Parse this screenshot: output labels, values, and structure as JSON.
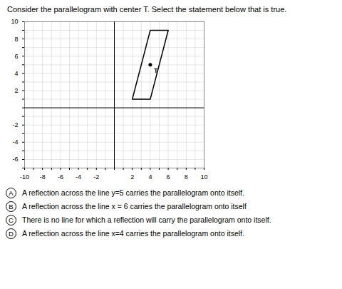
{
  "chart_data": {
    "type": "polygon",
    "title": "Consider the parallelogram with center T.  Select the statement below that is true.",
    "x": [
      2,
      4,
      6,
      4
    ],
    "y": [
      1,
      1,
      9,
      9
    ],
    "color": "#000000",
    "points": [
      {
        "x": 4.0,
        "y": 5.0,
        "label": "T"
      }
    ],
    "xlim": [
      -10,
      10
    ],
    "ylim": [
      -7,
      10
    ],
    "xticks": [
      -10,
      {
        "value": -9,
        "label": null
      },
      -8,
      {
        "value": -7,
        "label": null
      },
      -6,
      {
        "value": -5,
        "label": null
      },
      -4,
      {
        "value": -3,
        "label": null
      },
      -2,
      {
        "value": -1,
        "label": null
      },
      {
        "value": 0,
        "label": null
      },
      {
        "value": 1,
        "label": null
      },
      2,
      {
        "value": 3,
        "label": null
      },
      4,
      {
        "value": 5,
        "label": null
      },
      6,
      {
        "value": 7,
        "label": null
      },
      8,
      {
        "value": 9,
        "label": null
      },
      10
    ],
    "yticks": [
      {
        "value": -7,
        "label": null
      },
      -6,
      {
        "value": -5,
        "label": null
      },
      -4,
      {
        "value": -3,
        "label": null
      },
      -2,
      {
        "value": -1,
        "label": null
      },
      {
        "value": 0,
        "label": null
      },
      {
        "value": 1,
        "label": null
      },
      2,
      {
        "value": 3,
        "label": null
      },
      4,
      {
        "value": 5,
        "label": null
      },
      6,
      {
        "value": 7,
        "label": null
      },
      8,
      {
        "value": 9,
        "label": null
      },
      10
    ],
    "grid": true,
    "annotations": [
      {
        "label": "A",
        "text": "A reflection across the line y=5 carries the parallelogram onto itself."
      },
      {
        "label": "B",
        "text": "A reflection across the line x = 6 carries the parallelogram onto itself"
      },
      {
        "label": "C",
        "text": "There is no line for which a reflection will carry the parallelogram onto itself."
      },
      {
        "label": "D",
        "text": "A reflection across the line x=4 carries the parallelogram onto itself."
      }
    ]
  }
}
